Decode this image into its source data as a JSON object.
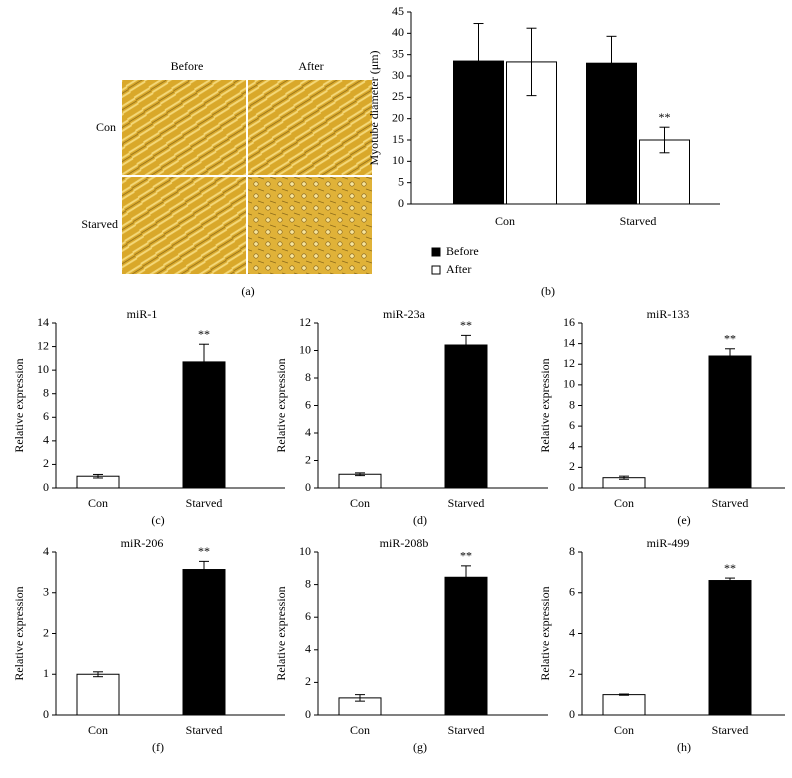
{
  "image_panel": {
    "columns": [
      "Before",
      "After"
    ],
    "rows": [
      "Con",
      "Starved"
    ],
    "label": "(a)"
  },
  "chart_data": [
    {
      "type": "bar",
      "panel_label": "(b)",
      "ylabel": "Myotube diameter (μm)",
      "categories": [
        "Con",
        "Starved"
      ],
      "series": [
        {
          "name": "Before",
          "color": "#000000",
          "values": [
            33.5,
            33
          ],
          "errors": [
            8.8,
            6.3
          ],
          "significance": [
            null,
            null
          ]
        },
        {
          "name": "After",
          "color": "#ffffff",
          "values": [
            33.3,
            15
          ],
          "errors": [
            7.9,
            3
          ],
          "significance": [
            null,
            "**"
          ]
        }
      ],
      "ylim": [
        0,
        45
      ],
      "yticks": [
        0,
        5,
        10,
        15,
        20,
        25,
        30,
        35,
        40,
        45
      ]
    },
    {
      "type": "bar",
      "title": "miR-1",
      "panel_label": "(c)",
      "ylabel": "Relative expression",
      "categories": [
        "Con",
        "Starved"
      ],
      "values": [
        1,
        10.7
      ],
      "errors": [
        0.15,
        1.5
      ],
      "colors": [
        "#ffffff",
        "#000000"
      ],
      "significance": [
        null,
        "**"
      ],
      "ylim": [
        0,
        14
      ],
      "yticks": [
        0,
        2,
        4,
        6,
        8,
        10,
        12,
        14
      ]
    },
    {
      "type": "bar",
      "title": "miR-23a",
      "panel_label": "(d)",
      "ylabel": "Relative expression",
      "categories": [
        "Con",
        "Starved"
      ],
      "values": [
        1,
        10.4
      ],
      "errors": [
        0.1,
        0.7
      ],
      "colors": [
        "#ffffff",
        "#000000"
      ],
      "significance": [
        null,
        "**"
      ],
      "ylim": [
        0,
        12
      ],
      "yticks": [
        0,
        2,
        4,
        6,
        8,
        10,
        12
      ]
    },
    {
      "type": "bar",
      "title": "miR-133",
      "panel_label": "(e)",
      "ylabel": "Relative expression",
      "categories": [
        "Con",
        "Starved"
      ],
      "values": [
        1,
        12.8
      ],
      "errors": [
        0.15,
        0.7
      ],
      "colors": [
        "#ffffff",
        "#000000"
      ],
      "significance": [
        null,
        "**"
      ],
      "ylim": [
        0,
        16
      ],
      "yticks": [
        0,
        2,
        4,
        6,
        8,
        10,
        12,
        14,
        16
      ]
    },
    {
      "type": "bar",
      "title": "miR-206",
      "panel_label": "(f)",
      "ylabel": "Relative expression",
      "categories": [
        "Con",
        "Starved"
      ],
      "values": [
        1,
        3.57
      ],
      "errors": [
        0.06,
        0.2
      ],
      "colors": [
        "#ffffff",
        "#000000"
      ],
      "significance": [
        null,
        "**"
      ],
      "ylim": [
        0,
        4
      ],
      "yticks": [
        0,
        1,
        2,
        3,
        4
      ]
    },
    {
      "type": "bar",
      "title": "miR-208b",
      "panel_label": "(g)",
      "ylabel": "Relative expression",
      "categories": [
        "Con",
        "Starved"
      ],
      "values": [
        1.05,
        8.45
      ],
      "errors": [
        0.2,
        0.7
      ],
      "colors": [
        "#ffffff",
        "#000000"
      ],
      "significance": [
        null,
        "**"
      ],
      "ylim": [
        0,
        10
      ],
      "yticks": [
        0,
        2,
        4,
        6,
        8,
        10
      ]
    },
    {
      "type": "bar",
      "title": "miR-499",
      "panel_label": "(h)",
      "ylabel": "Relative expression",
      "categories": [
        "Con",
        "Starved"
      ],
      "values": [
        1,
        6.6
      ],
      "errors": [
        0.03,
        0.12
      ],
      "colors": [
        "#ffffff",
        "#000000"
      ],
      "significance": [
        null,
        "**"
      ],
      "ylim": [
        0,
        8
      ],
      "yticks": [
        0,
        2,
        4,
        6,
        8
      ]
    }
  ]
}
